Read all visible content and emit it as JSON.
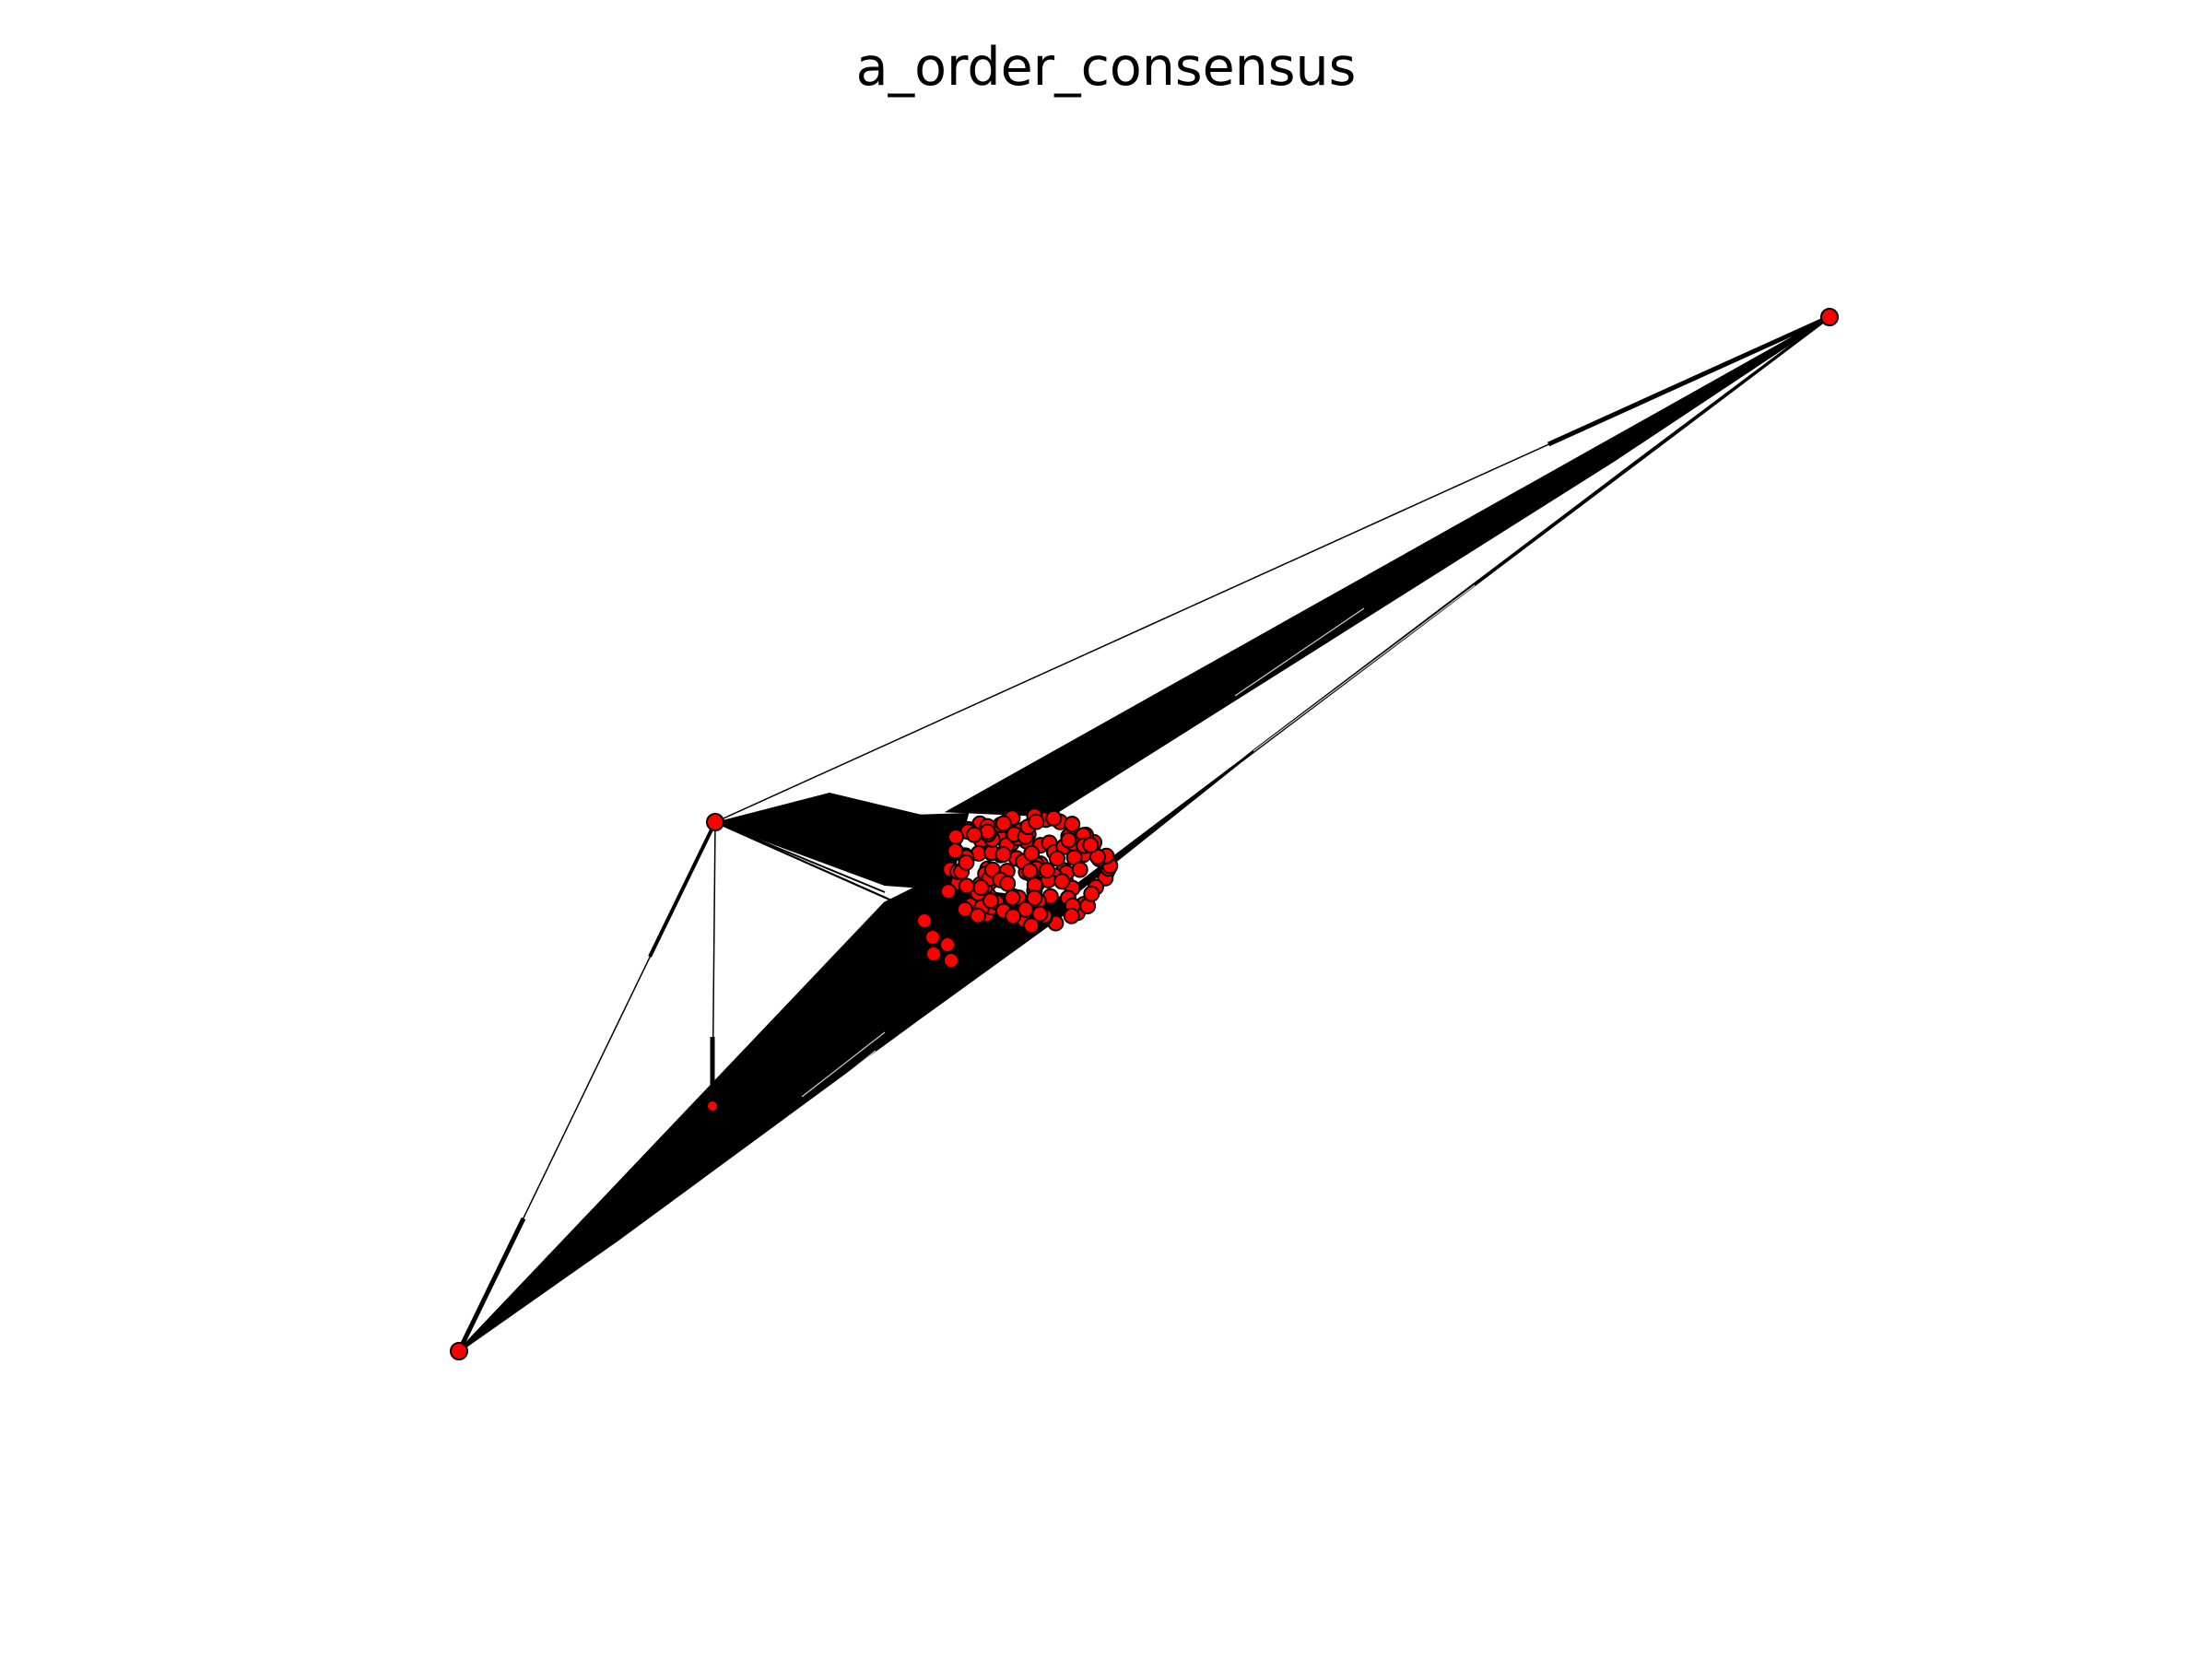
{
  "title": "a_order_consensus",
  "style": {
    "node_fill": "#ff0000",
    "node_stroke": "#000000",
    "edge_color": "#000000",
    "background": "#ffffff"
  }
}
